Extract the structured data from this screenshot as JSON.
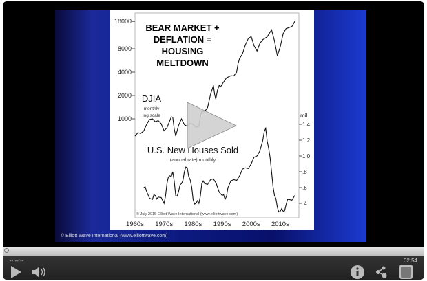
{
  "video": {
    "copyright": "© Elliott Wave International (www.elliottwave.com)",
    "current_time": "--:--:--",
    "duration": "02:54",
    "progress": 0
  },
  "controls": {
    "play_icon": "play-icon",
    "volume_icon": "volume-icon",
    "info_icon": "info-icon",
    "share_icon": "share-icon",
    "fullscreen_icon": "fullscreen-icon"
  },
  "chart_data": {
    "type": "line",
    "title_lines": [
      "BEAR MARKET +",
      "DEFLATION =",
      "HOUSING",
      "MELTDOWN"
    ],
    "credit": "© July 2015 Elliott Wave International (www.elliottwave.com)",
    "x_tick_labels": [
      "1960s",
      "1970s",
      "1980s",
      "1990s",
      "2000s",
      "2010s"
    ],
    "left_axis": {
      "scale": "log",
      "ticks": [
        1000,
        2000,
        4000,
        8000,
        18000
      ],
      "tick_labels": [
        "1000",
        "2000",
        "4000",
        "8000",
        "18000"
      ]
    },
    "right_axis": {
      "unit": "mil.",
      "ticks": [
        0.4,
        0.6,
        0.8,
        1.0,
        1.2,
        1.4
      ],
      "tick_labels": [
        ".4",
        ".6",
        ".8",
        "1.0",
        "1.2",
        "1.4"
      ]
    },
    "series": [
      {
        "name": "DJIA",
        "sub": [
          "monthly",
          "log scale"
        ],
        "axis": "left",
        "x": [
          1960,
          1962,
          1964,
          1966,
          1968,
          1970,
          1972,
          1973,
          1974,
          1976,
          1978,
          1980,
          1982,
          1983,
          1985,
          1987,
          1987.8,
          1989,
          1990,
          1993,
          1995,
          1996,
          1998,
          2000,
          2002,
          2004,
          2007,
          2009,
          2011,
          2013,
          2015
        ],
        "y": [
          600,
          650,
          850,
          1000,
          950,
          700,
          950,
          1050,
          600,
          1000,
          800,
          850,
          800,
          1250,
          1400,
          2700,
          1800,
          2700,
          2800,
          3600,
          4000,
          6000,
          9000,
          11500,
          7500,
          10500,
          14000,
          6500,
          12500,
          15000,
          18000
        ]
      },
      {
        "name": "U.S. New Houses Sold",
        "sub": [
          "(annual rate) monthly"
        ],
        "axis": "right",
        "x": [
          1963,
          1964,
          1966,
          1967,
          1968,
          1970,
          1971,
          1972,
          1973,
          1974,
          1975,
          1976,
          1977,
          1978,
          1979,
          1980,
          1981,
          1982,
          1983,
          1984,
          1986,
          1988,
          1990,
          1991,
          1992,
          1994,
          1996,
          1998,
          2000,
          2002,
          2004,
          2005,
          2006,
          2007,
          2008,
          2009,
          2010,
          2011,
          2012,
          2013,
          2015
        ],
        "y": [
          0.6,
          0.55,
          0.45,
          0.5,
          0.48,
          0.4,
          0.65,
          0.75,
          0.8,
          0.5,
          0.55,
          0.65,
          0.8,
          0.85,
          0.7,
          0.45,
          0.4,
          0.4,
          0.65,
          0.65,
          0.7,
          0.65,
          0.5,
          0.45,
          0.6,
          0.7,
          0.75,
          0.85,
          0.9,
          1.0,
          1.2,
          1.35,
          1.1,
          0.8,
          0.5,
          0.35,
          0.3,
          0.3,
          0.38,
          0.45,
          0.5
        ]
      }
    ]
  }
}
